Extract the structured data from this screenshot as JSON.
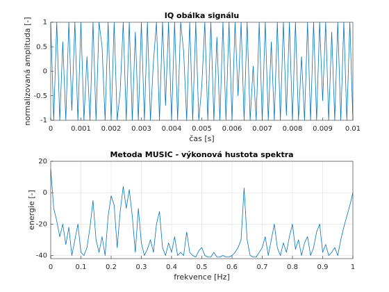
{
  "chart_data": [
    {
      "type": "line",
      "title": "IQ obálka signálu",
      "xlabel": "čas [s]",
      "ylabel": "normalizovaná amplituda [-]",
      "x": [
        0,
        0.0001,
        0.0002,
        0.0003,
        0.0004,
        0.0005,
        0.0006,
        0.0007,
        0.0008,
        0.0009,
        0.001,
        0.0011,
        0.0012,
        0.0013,
        0.0014,
        0.0015,
        0.0016,
        0.0017,
        0.0018,
        0.0019,
        0.002,
        0.0021,
        0.0022,
        0.0023,
        0.0024,
        0.0025,
        0.0026,
        0.0027,
        0.0028,
        0.0029,
        0.003,
        0.0031,
        0.0032,
        0.0033,
        0.0034,
        0.0035,
        0.0036,
        0.0037,
        0.0038,
        0.0039,
        0.004,
        0.0041,
        0.0042,
        0.0043,
        0.0044,
        0.0045,
        0.0046,
        0.0047,
        0.0048,
        0.0049,
        0.005,
        0.0051,
        0.0052,
        0.0053,
        0.0054,
        0.0055,
        0.0056,
        0.0057,
        0.0058,
        0.0059,
        0.006,
        0.0061,
        0.0062,
        0.0063,
        0.0064,
        0.0065,
        0.0066,
        0.0067,
        0.0068,
        0.0069,
        0.007,
        0.0071,
        0.0072,
        0.0073,
        0.0074,
        0.0075,
        0.0076,
        0.0077,
        0.0078,
        0.0079,
        0.008,
        0.0081,
        0.0082,
        0.0083,
        0.0084,
        0.0085,
        0.0086,
        0.0087,
        0.0088,
        0.0089,
        0.009,
        0.0091,
        0.0092,
        0.0093,
        0.0094,
        0.0095,
        0.0096,
        0.0097,
        0.0098,
        0.0099,
        0.01
      ],
      "series": [
        {
          "color": "#0072bd",
          "values": [
            1,
            -1,
            1,
            -1,
            0.6,
            -1,
            1,
            -0.8,
            1,
            -1,
            1,
            -1,
            0.3,
            -1,
            1,
            -1,
            1,
            0.5,
            -1,
            1,
            -1,
            1,
            -1,
            -0.4,
            1,
            -1,
            1,
            -1,
            0.8,
            -1,
            1,
            -1,
            1,
            -1,
            0.2,
            1,
            -1,
            1,
            -0.7,
            1,
            -1,
            1,
            -1,
            1,
            0.4,
            -1,
            1,
            -1,
            1,
            -1,
            -0.3,
            1,
            -1,
            1,
            -1,
            0.7,
            -1,
            1,
            -1,
            1,
            -1,
            1,
            -0.5,
            1,
            -1,
            1,
            -1,
            0.1,
            -1,
            1,
            -1,
            1,
            -1,
            0.6,
            -1,
            1,
            -1,
            1,
            -0.9,
            1,
            -1,
            1,
            -1,
            0.3,
            -1,
            1,
            -1,
            1,
            -1,
            1,
            -0.6,
            1,
            -1,
            0.8,
            -1,
            1,
            -1,
            1,
            -1,
            1,
            -1
          ]
        }
      ],
      "xlim": [
        0,
        0.01
      ],
      "xticks": [
        0,
        0.001,
        0.002,
        0.003,
        0.004,
        0.005,
        0.006,
        0.007,
        0.008,
        0.009,
        0.01
      ],
      "ylim": [
        -1,
        1
      ],
      "yticks": [
        -1,
        -0.5,
        0,
        0.5,
        1
      ],
      "grid": false
    },
    {
      "type": "line",
      "title": "Metoda MUSIC - výkonová hustota spektra",
      "xlabel": "frekvence [Hz]",
      "ylabel": "energie [-]",
      "x": [
        0,
        0.01,
        0.02,
        0.03,
        0.04,
        0.05,
        0.06,
        0.07,
        0.08,
        0.09,
        0.1,
        0.11,
        0.12,
        0.13,
        0.14,
        0.15,
        0.16,
        0.17,
        0.18,
        0.19,
        0.2,
        0.21,
        0.22,
        0.23,
        0.24,
        0.25,
        0.26,
        0.27,
        0.28,
        0.29,
        0.3,
        0.31,
        0.32,
        0.33,
        0.34,
        0.35,
        0.36,
        0.37,
        0.38,
        0.39,
        0.4,
        0.41,
        0.42,
        0.43,
        0.44,
        0.45,
        0.46,
        0.47,
        0.48,
        0.49,
        0.5,
        0.51,
        0.52,
        0.53,
        0.54,
        0.55,
        0.56,
        0.57,
        0.58,
        0.59,
        0.6,
        0.61,
        0.62,
        0.63,
        0.64,
        0.65,
        0.66,
        0.67,
        0.68,
        0.69,
        0.7,
        0.71,
        0.72,
        0.73,
        0.74,
        0.75,
        0.76,
        0.77,
        0.78,
        0.79,
        0.8,
        0.81,
        0.82,
        0.83,
        0.84,
        0.85,
        0.86,
        0.87,
        0.88,
        0.89,
        0.9,
        0.91,
        0.92,
        0.93,
        0.94,
        0.95,
        0.96,
        0.97,
        0.98,
        0.99,
        1
      ],
      "series": [
        {
          "color": "#0072bd",
          "values": [
            15,
            -10,
            -18,
            -28,
            -20,
            -33,
            -22,
            -40,
            -30,
            -20,
            -38,
            -40,
            -35,
            -22,
            -5,
            -30,
            -38,
            -28,
            -40,
            -15,
            -2,
            -8,
            -35,
            -12,
            4,
            -10,
            2,
            -15,
            -38,
            -10,
            -32,
            -40,
            -36,
            -30,
            -38,
            -20,
            -12,
            -35,
            -40,
            -32,
            -38,
            -28,
            -40,
            -38,
            -40,
            -25,
            -38,
            -40,
            -41,
            -37,
            -35,
            -40,
            -41,
            -41,
            -38,
            -41,
            -41,
            -40,
            -41,
            -41,
            -40,
            -38,
            -35,
            -30,
            3,
            -30,
            -40,
            -41,
            -41,
            -38,
            -35,
            -28,
            -40,
            -30,
            -20,
            -35,
            -40,
            -32,
            -38,
            -28,
            -20,
            -36,
            -30,
            -40,
            -32,
            -28,
            -40,
            -35,
            -25,
            -20,
            -38,
            -33,
            -40,
            -38,
            -35,
            -40,
            -30,
            -22,
            -15,
            -8,
            0
          ]
        }
      ],
      "xlim": [
        0,
        1
      ],
      "xticks": [
        0,
        0.1,
        0.2,
        0.3,
        0.4,
        0.5,
        0.6,
        0.7,
        0.8,
        0.9,
        1
      ],
      "ylim": [
        -42,
        20
      ],
      "yticks": [
        -40,
        -20,
        0,
        20
      ],
      "grid": true
    }
  ]
}
